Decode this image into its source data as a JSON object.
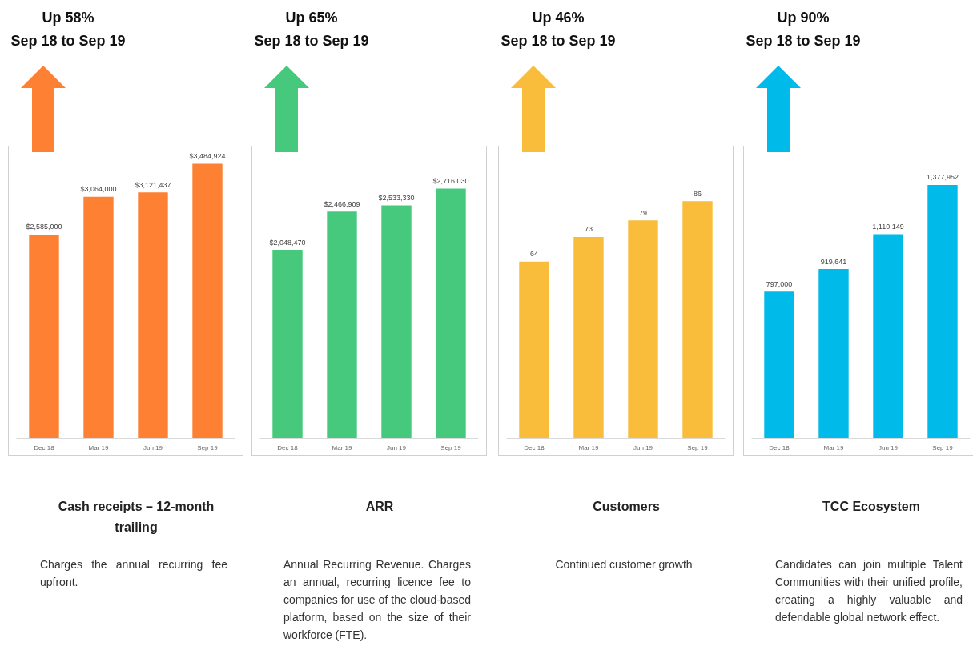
{
  "chart_data": [
    {
      "type": "bar",
      "title": "Cash receipts – 12-month trailing",
      "annotations": [
        "Up 58%",
        "Sep 18 to Sep 19",
        "Charges the annual recurring fee upfront."
      ],
      "categories": [
        "Dec 18",
        "Mar 19",
        "Jun 19",
        "Sep 19"
      ],
      "series": [
        {
          "color": "#fe8133",
          "values": [
            2585000,
            3064000,
            3121437,
            3484924
          ],
          "value_labels": [
            "$2,585,000",
            "$3,064,000",
            "$3,121,437",
            "$3,484,924"
          ]
        }
      ]
    },
    {
      "type": "bar",
      "title": "ARR",
      "annotations": [
        "Up 65%",
        "Sep 18 to Sep 19",
        "Annual Recurring Revenue. Charges an annual, recurring licence fee to companies for use of the cloud-based platform, based on the size of their workforce (FTE)."
      ],
      "categories": [
        "Dec 18",
        "Mar 19",
        "Jun 19",
        "Sep 19"
      ],
      "series": [
        {
          "color": "#46c97d",
          "values": [
            2048470,
            2466909,
            2533330,
            2716030
          ],
          "value_labels": [
            "$2,048,470",
            "$2,466,909",
            "$2,533,330",
            "$2,716,030"
          ]
        }
      ]
    },
    {
      "type": "bar",
      "title": "Customers",
      "annotations": [
        "Up 46%",
        "Sep 18 to Sep 19",
        "Continued customer growth"
      ],
      "categories": [
        "Dec 18",
        "Mar 19",
        "Jun 19",
        "Sep 19"
      ],
      "series": [
        {
          "color": "#f9bd3b",
          "values": [
            64,
            73,
            79,
            86
          ],
          "value_labels": [
            "64",
            "73",
            "79",
            "86"
          ]
        }
      ]
    },
    {
      "type": "bar",
      "title": "TCC Ecosystem",
      "annotations": [
        "Up 90%",
        "Sep 18 to Sep 19",
        "Candidates can join multiple Talent Communities with their unified profile, creating a highly valuable and defendable global network effect."
      ],
      "categories": [
        "Dec 18",
        "Mar 19",
        "Jun 19",
        "Sep 19"
      ],
      "series": [
        {
          "color": "#00bbe9",
          "values": [
            797000,
            919641,
            1110149,
            1377952
          ],
          "value_labels": [
            "797,000",
            "919,641",
            "1,110,149",
            "1,377,952"
          ]
        }
      ]
    }
  ]
}
